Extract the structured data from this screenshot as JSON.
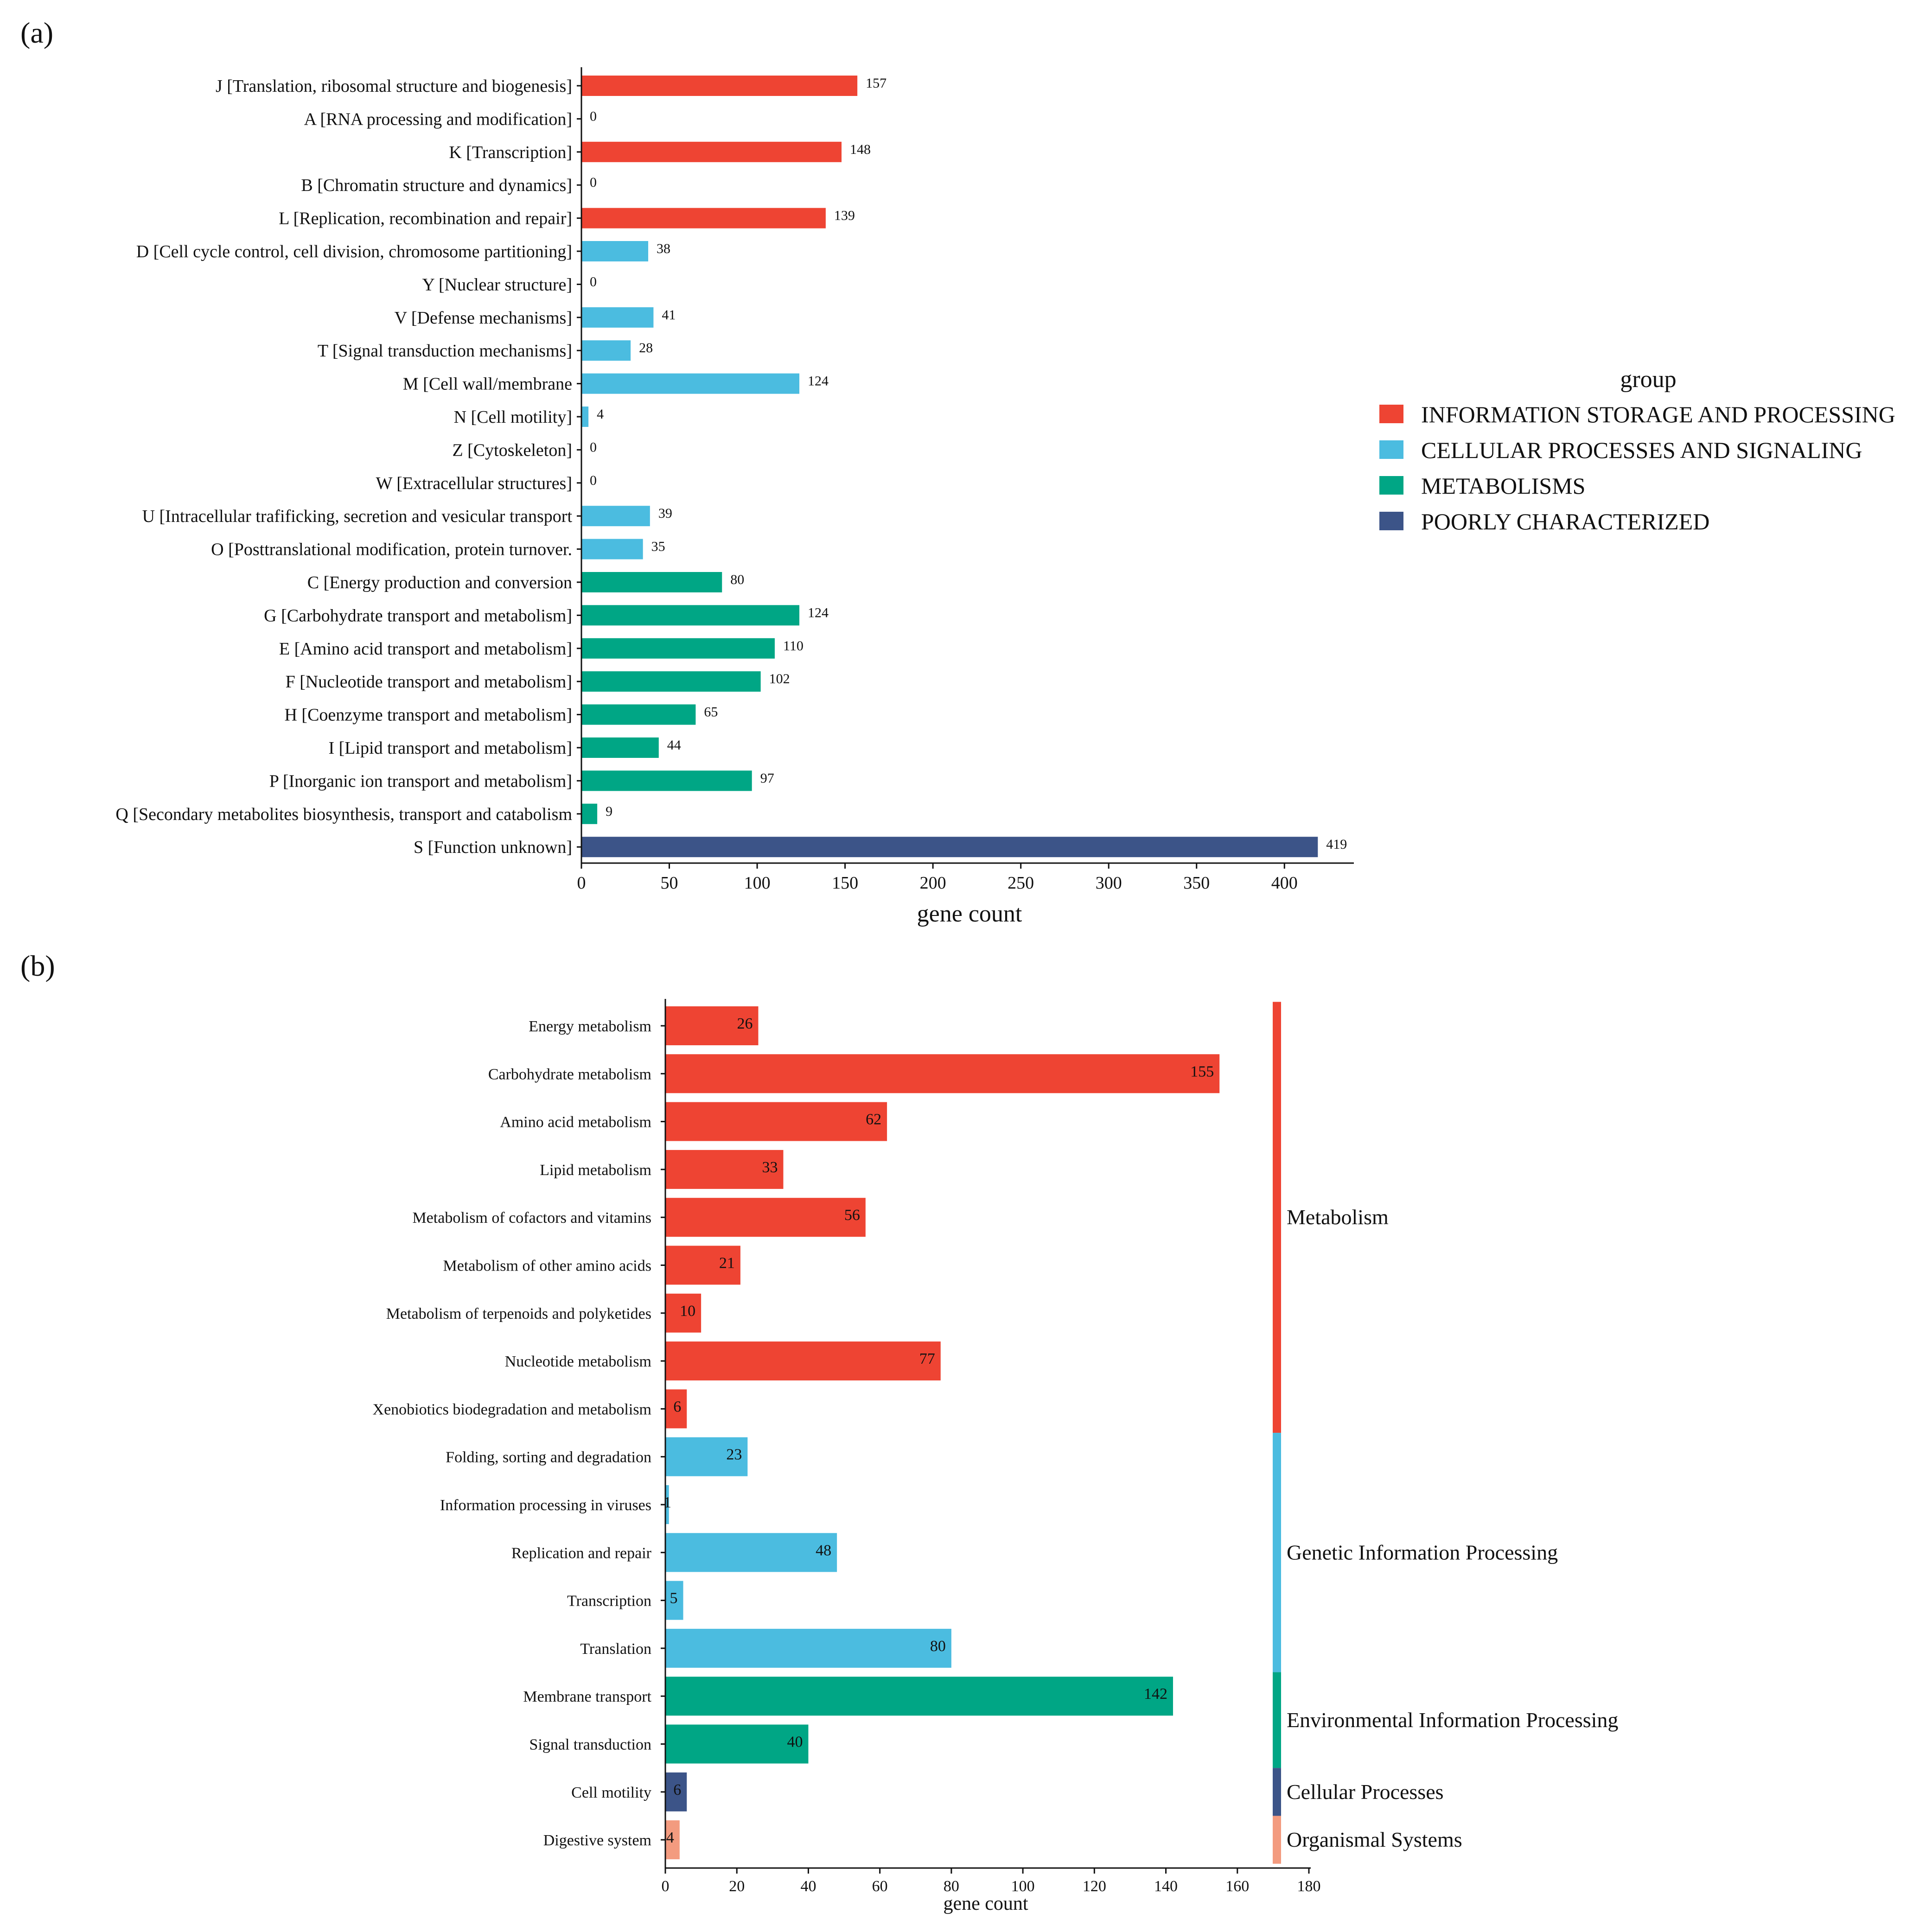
{
  "chart_data": [
    {
      "panel_label": "(a)",
      "type": "bar",
      "orientation": "horizontal",
      "xlabel": "gene count",
      "xlim": [
        0,
        440
      ],
      "xticks": [
        0,
        50,
        100,
        150,
        200,
        250,
        300,
        350,
        400
      ],
      "legend": {
        "title": "group",
        "position": "right",
        "entries": [
          {
            "key": "info",
            "label": "INFORMATION STORAGE AND PROCESSING",
            "color": "#EE4433"
          },
          {
            "key": "cell",
            "label": "CELLULAR PROCESSES AND SIGNALING",
            "color": "#4BBCE0"
          },
          {
            "key": "meta",
            "label": "METABOLISMS",
            "color": "#00A685"
          },
          {
            "key": "poor",
            "label": "POORLY CHARACTERIZED",
            "color": "#3C5488"
          }
        ]
      },
      "bars": [
        {
          "label": "J [Translation, ribosomal structure and biogenesis]",
          "value": 157,
          "group": "info"
        },
        {
          "label": "A [RNA processing and modification]",
          "value": 0,
          "group": "info"
        },
        {
          "label": "K [Transcription]",
          "value": 148,
          "group": "info"
        },
        {
          "label": "B [Chromatin structure and dynamics]",
          "value": 0,
          "group": "info"
        },
        {
          "label": "L [Replication, recombination and repair]",
          "value": 139,
          "group": "info"
        },
        {
          "label": "D [Cell cycle control, cell division, chromosome partitioning]",
          "value": 38,
          "group": "cell"
        },
        {
          "label": "Y [Nuclear structure]",
          "value": 0,
          "group": "cell"
        },
        {
          "label": "V [Defense mechanisms]",
          "value": 41,
          "group": "cell"
        },
        {
          "label": "T [Signal transduction mechanisms]",
          "value": 28,
          "group": "cell"
        },
        {
          "label": "M [Cell wall/membrane",
          "value": 124,
          "group": "cell"
        },
        {
          "label": "N [Cell motility]",
          "value": 4,
          "group": "cell"
        },
        {
          "label": "Z [Cytoskeleton]",
          "value": 0,
          "group": "cell"
        },
        {
          "label": "W [Extracellular structures]",
          "value": 0,
          "group": "cell"
        },
        {
          "label": "U [Intracellular trafificking, secretion and vesicular transport",
          "value": 39,
          "group": "cell"
        },
        {
          "label": "O [Posttranslational modification, protein turnover.",
          "value": 35,
          "group": "cell"
        },
        {
          "label": "C [Energy production and conversion",
          "value": 80,
          "group": "meta"
        },
        {
          "label": "G [Carbohydrate transport and metabolism]",
          "value": 124,
          "group": "meta"
        },
        {
          "label": "E [Amino acid transport and metabolism]",
          "value": 110,
          "group": "meta"
        },
        {
          "label": "F [Nucleotide transport and metabolism]",
          "value": 102,
          "group": "meta"
        },
        {
          "label": "H [Coenzyme transport and metabolism]",
          "value": 65,
          "group": "meta"
        },
        {
          "label": "I [Lipid transport and metabolism]",
          "value": 44,
          "group": "meta"
        },
        {
          "label": "P [Inorganic ion transport and metabolism]",
          "value": 97,
          "group": "meta"
        },
        {
          "label": "Q [Secondary metabolites biosynthesis, transport and catabolism",
          "value": 9,
          "group": "meta"
        },
        {
          "label": "S [Function unknown]",
          "value": 419,
          "group": "poor"
        }
      ]
    },
    {
      "panel_label": "(b)",
      "type": "bar",
      "orientation": "horizontal",
      "xlabel": "gene count",
      "xlim": [
        0,
        180
      ],
      "xticks": [
        0,
        20,
        40,
        60,
        80,
        100,
        120,
        140,
        160,
        180
      ],
      "groups": [
        {
          "key": "met",
          "label": "Metabolism",
          "color": "#EE4433"
        },
        {
          "key": "gip",
          "label": "Genetic Information Processing",
          "color": "#4BBCE0"
        },
        {
          "key": "eip",
          "label": "Environmental Information Processing",
          "color": "#00A685"
        },
        {
          "key": "cp",
          "label": "Cellular Processes",
          "color": "#3C5488"
        },
        {
          "key": "os",
          "label": "Organismal Systems",
          "color": "#F39B7F"
        }
      ],
      "bars": [
        {
          "label": "Energy metabolism",
          "value": 26,
          "group": "met"
        },
        {
          "label": "Carbohydrate metabolism",
          "value": 155,
          "group": "met"
        },
        {
          "label": "Amino acid metabolism",
          "value": 62,
          "group": "met"
        },
        {
          "label": "Lipid metabolism",
          "value": 33,
          "group": "met"
        },
        {
          "label": "Metabolism of cofactors and vitamins",
          "value": 56,
          "group": "met"
        },
        {
          "label": "Metabolism of other amino acids",
          "value": 21,
          "group": "met"
        },
        {
          "label": "Metabolism of terpenoids and polyketides",
          "value": 10,
          "group": "met"
        },
        {
          "label": "Nucleotide metabolism",
          "value": 77,
          "group": "met"
        },
        {
          "label": "Xenobiotics biodegradation and metabolism",
          "value": 6,
          "group": "met"
        },
        {
          "label": "Folding, sorting and degradation",
          "value": 23,
          "group": "gip"
        },
        {
          "label": "Information processing in viruses",
          "value": 1,
          "group": "gip"
        },
        {
          "label": "Replication and repair",
          "value": 48,
          "group": "gip"
        },
        {
          "label": "Transcription",
          "value": 5,
          "group": "gip"
        },
        {
          "label": "Translation",
          "value": 80,
          "group": "gip"
        },
        {
          "label": "Membrane transport",
          "value": 142,
          "group": "eip"
        },
        {
          "label": "Signal transduction",
          "value": 40,
          "group": "eip"
        },
        {
          "label": "Cell motility",
          "value": 6,
          "group": "cp"
        },
        {
          "label": "Digestive system",
          "value": 4,
          "group": "os"
        }
      ]
    }
  ]
}
